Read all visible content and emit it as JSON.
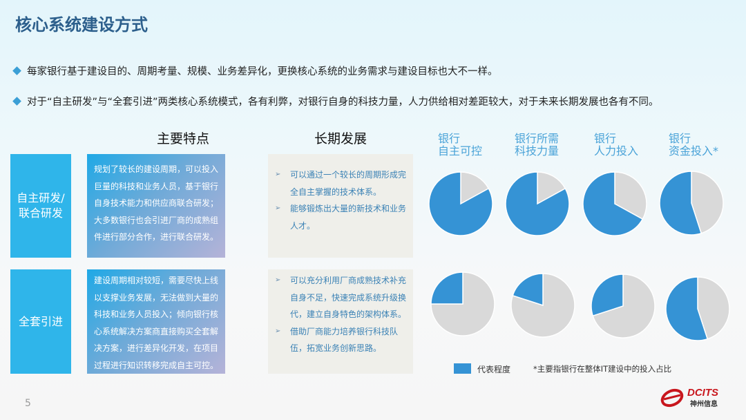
{
  "title": "核心系统建设方式",
  "bullets": [
    "每家银行基于建设目的、周期考量、规模、业务差异化，更换核心系统的业务需求与建设目标也大不一样。",
    "对于“自主研发”与“全套引进”两类核心系统模式，各有利弊，对银行自身的科技力量，人力供给相对差距较大，对于未来长期发展也各有不同。"
  ],
  "columns": {
    "features": "主要特点",
    "long_term": "长期发展"
  },
  "rows": [
    {
      "label": "自主研发/联合研发",
      "features": "规划了较长的建设周期，可以投入巨量的科技和业务人员，基于银行自身技术能力和供应商联合研发；大多数银行也会引进厂商的成熟组件进行部分合作，进行联合研发。",
      "long_term": [
        "可以通过一个较长的周期形成完全自主掌握的技术体系。",
        "能够锻炼出大量的新技术和业务人才。"
      ]
    },
    {
      "label": "全套引进",
      "features": "建设周期相对较短，需要尽快上线以支撑业务发展，无法做到大量的科技和业务人员投入；倾向银行核心系统解决方案商直接购买全套解决方案，进行差异化开发，在项目过程进行知识转移完成自主可控。",
      "long_term": [
        "可以充分利用厂商成熟技术补充自身不足，快速完成系统升级换代，建立自身特色的架构体系。",
        "借助厂商能力培养银行科技队伍，拓宽业务创新思路。"
      ]
    }
  ],
  "chart_data": {
    "type": "pie",
    "categories": [
      "银行\n自主可控",
      "银行所需\n科技力量",
      "银行\n人力投入",
      "银行\n资金投入*"
    ],
    "series": [
      {
        "row": "自主研发/联合研发",
        "values": [
          0.83,
          0.83,
          0.67,
          0.55
        ]
      },
      {
        "row": "全套引进",
        "values": [
          0.25,
          0.2,
          0.3,
          0.55
        ]
      }
    ],
    "colors": {
      "degree": "#3593d5",
      "rest": "#d9d9d9"
    },
    "legend": "代表程度",
    "note": "*主要指银行在整体IT建设中的投入占比"
  },
  "page_number": "5",
  "logo": {
    "text": "DCITS",
    "subtitle": "神州信息"
  }
}
